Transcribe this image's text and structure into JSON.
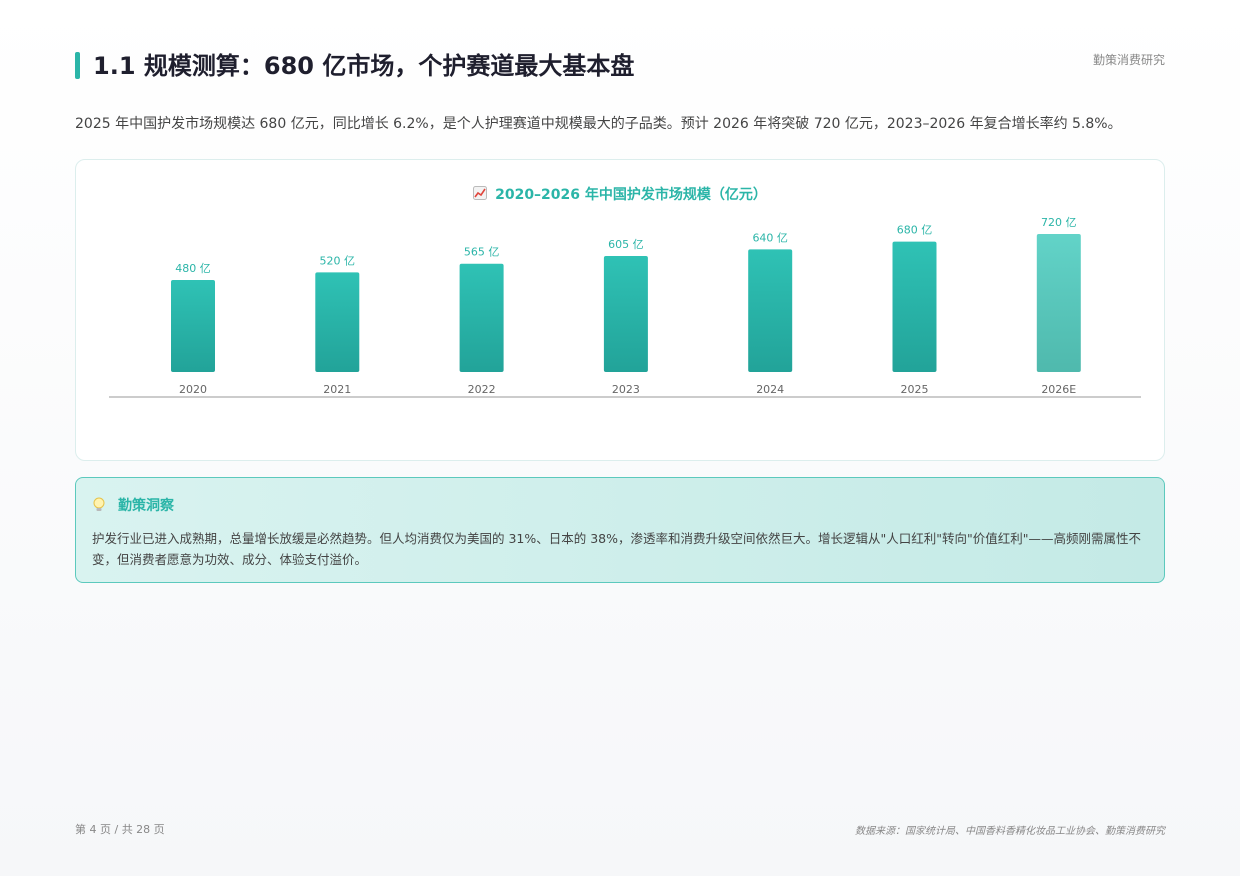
{
  "header": {
    "brand": "勤策消费研究",
    "title": "1.1 规模测算：680 亿市场，个护赛道最大基本盘"
  },
  "intro": "2025 年中国护发市场规模达 680 亿元，同比增长 6.2%，是个人护理赛道中规模最大的子品类。预计 2026 年将突破 720 亿元，2023–2026 年复合增长率约 5.8%。",
  "chart_data": {
    "type": "bar",
    "title": "2020–2026 年中国护发市场规模（亿元）",
    "categories": [
      "2020",
      "2021",
      "2022",
      "2023",
      "2024",
      "2025",
      "2026E"
    ],
    "values": [
      480,
      520,
      565,
      605,
      640,
      680,
      720
    ],
    "value_labels": [
      "480 亿",
      "520 亿",
      "565 亿",
      "605 亿",
      "640 亿",
      "680 亿",
      "720 亿"
    ],
    "ylim": [
      0,
      720
    ],
    "bar_color": "#2bb5a8",
    "forecast_color": "#5ccfc4",
    "grid": false
  },
  "insight": {
    "title": "勤策洞察",
    "text": "护发行业已进入成熟期，总量增长放缓是必然趋势。但人均消费仅为美国的 31%、日本的 38%，渗透率和消费升级空间依然巨大。增长逻辑从\"人口红利\"转向\"价值红利\"——高频刚需属性不变，但消费者愿意为功效、成分、体验支付溢价。"
  },
  "footer": {
    "page": "第 4 页 / 共 28 页",
    "source": "数据来源：国家统计局、中国香料香精化妆品工业协会、勤策消费研究"
  }
}
